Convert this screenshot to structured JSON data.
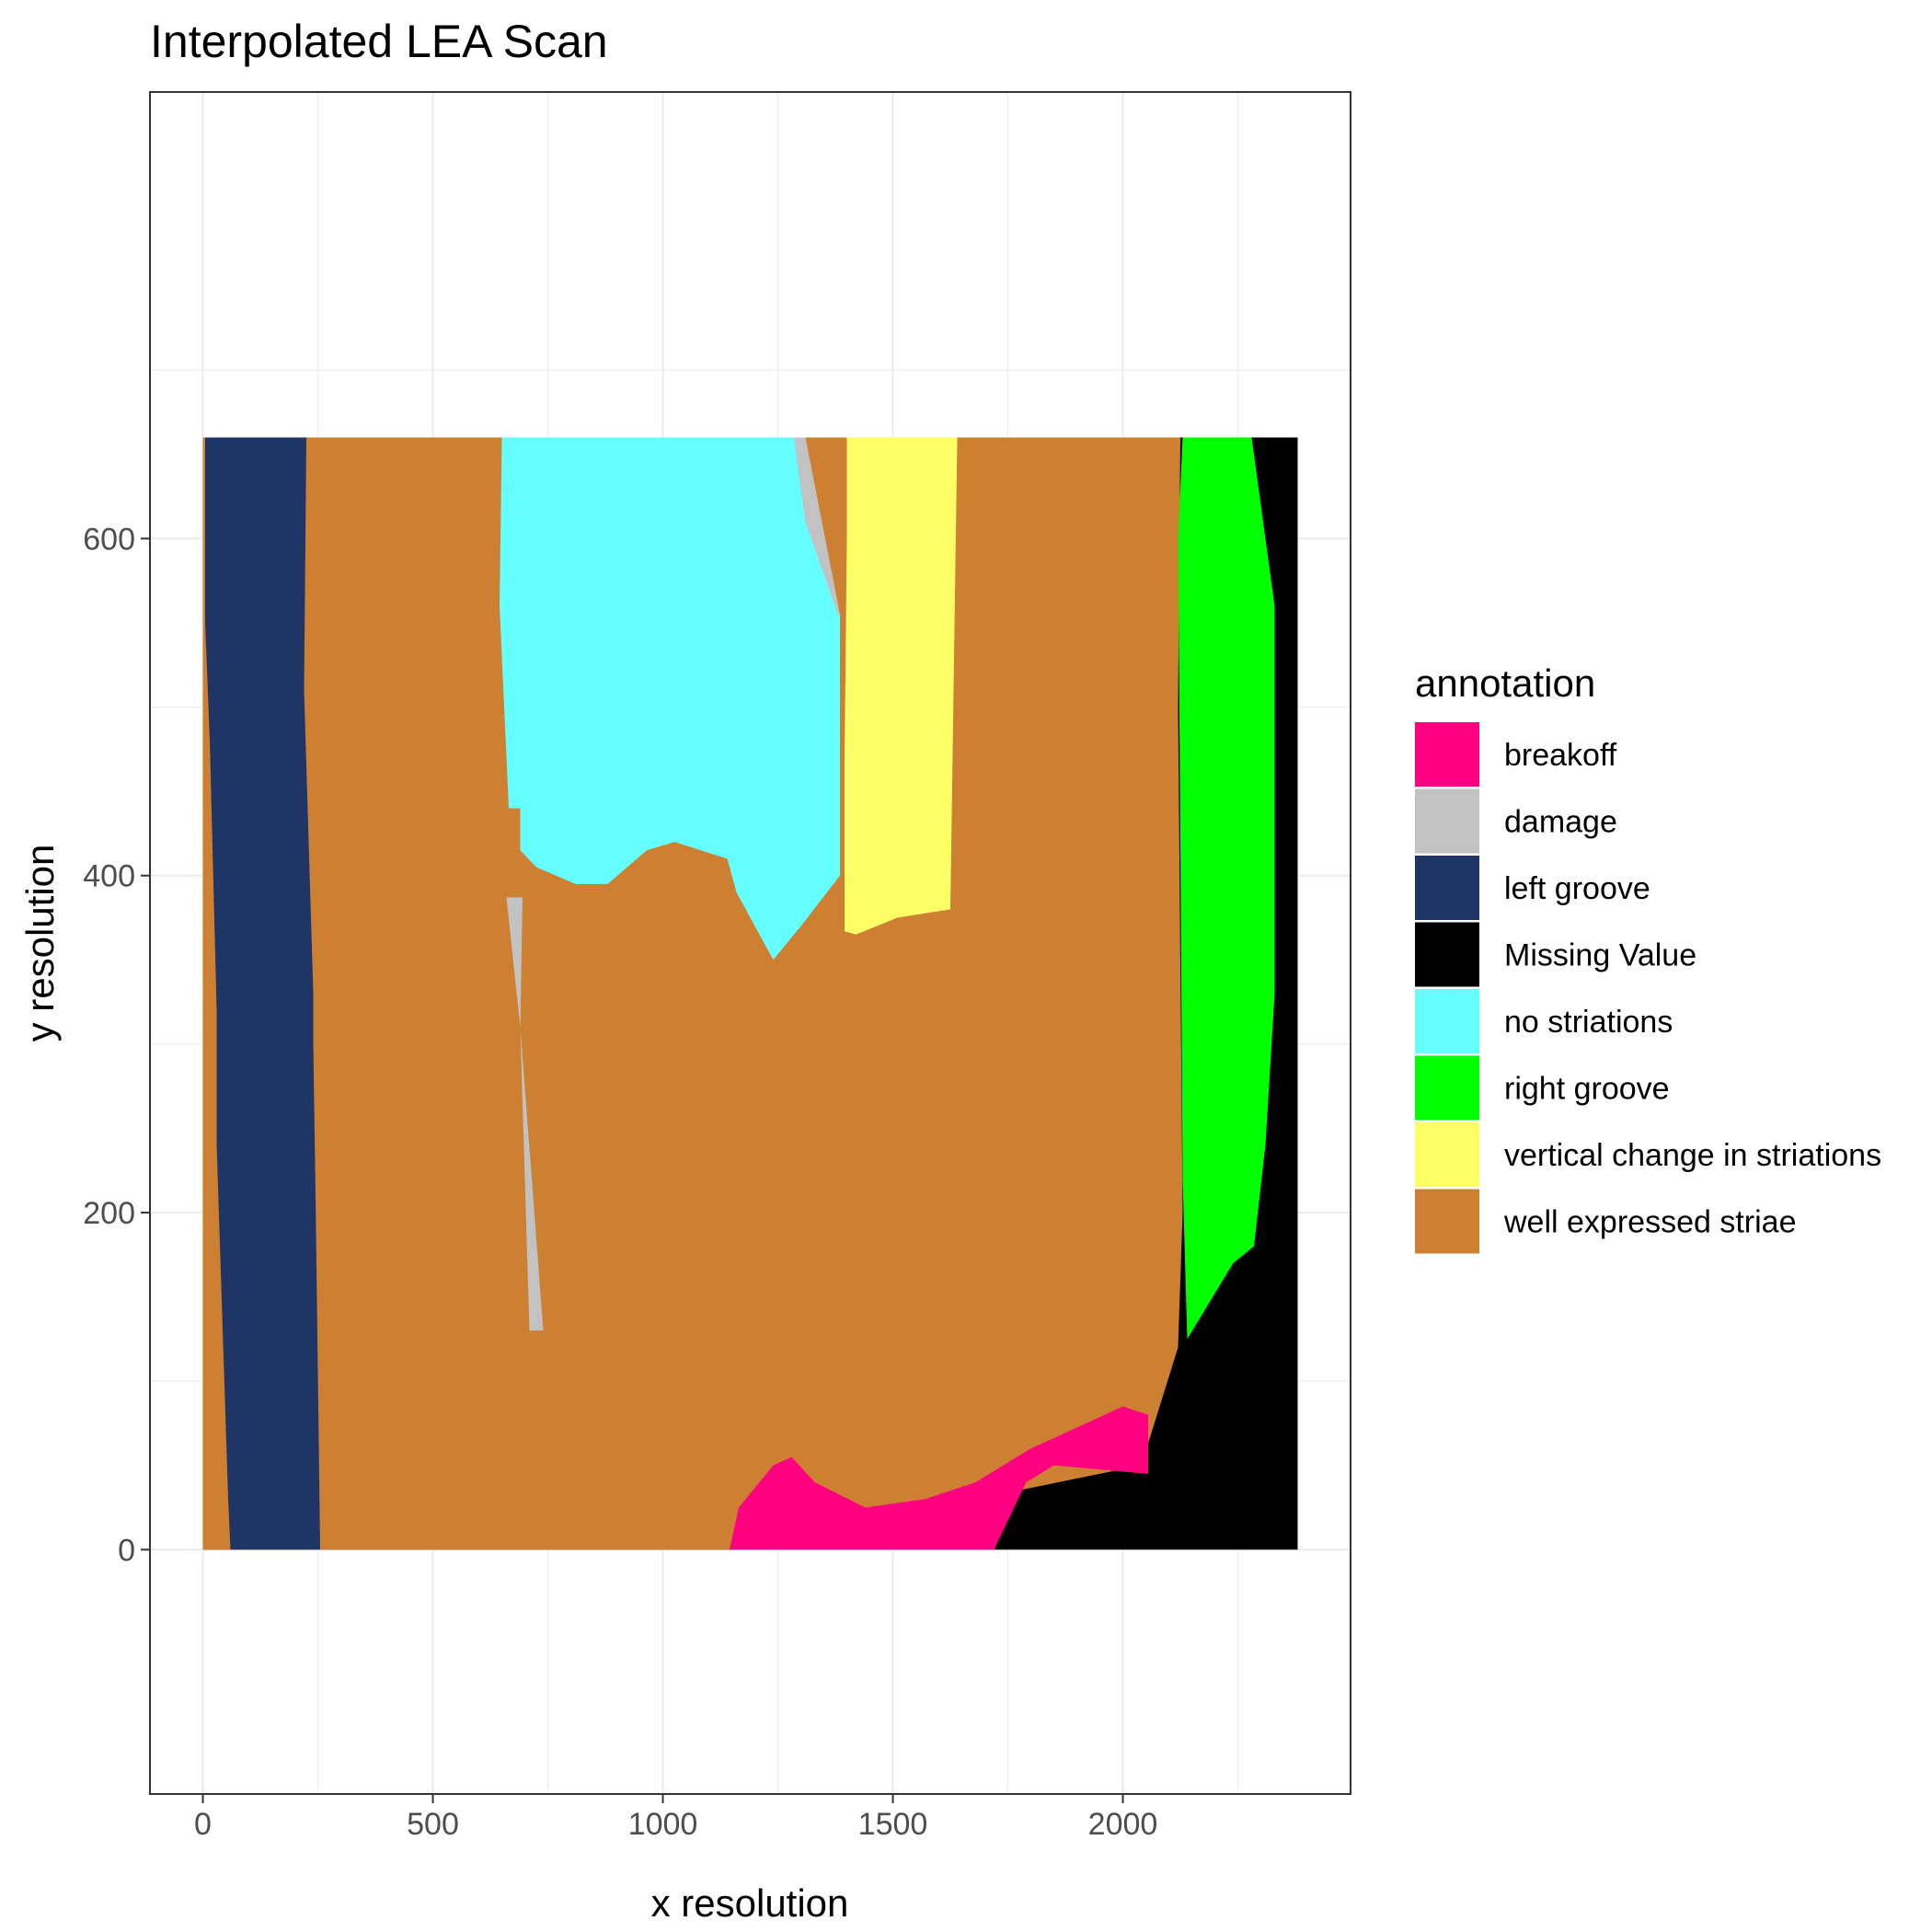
{
  "chart_data": {
    "type": "heatmap",
    "title": "Interpolated LEA Scan",
    "xlabel": "x resolution",
    "ylabel": "y resolution",
    "xlim": [
      -115,
      2495
    ],
    "ylim": [
      -145,
      865
    ],
    "x_ticks": [
      0,
      500,
      1000,
      1500,
      2000
    ],
    "y_ticks": [
      0,
      200,
      400,
      600
    ],
    "grid": true,
    "legend": {
      "title": "annotation",
      "position": "right",
      "items": [
        {
          "label": "breakoff",
          "color": "#FF0080"
        },
        {
          "label": "damage",
          "color": "#C2C2C2"
        },
        {
          "label": "left groove",
          "color": "#1F3566"
        },
        {
          "label": "Missing Value",
          "color": "#000000"
        },
        {
          "label": "no striations",
          "color": "#66FFFF"
        },
        {
          "label": "right groove",
          "color": "#00FF00"
        },
        {
          "label": "vertical change in striations",
          "color": "#FFFF66"
        },
        {
          "label": "well expressed striae",
          "color": "#CD8032"
        }
      ]
    },
    "regions": [
      {
        "annotation": "Missing Value",
        "polygon": [
          [
            0,
            0
          ],
          [
            2380,
            0
          ],
          [
            2380,
            660
          ],
          [
            0,
            660
          ]
        ]
      },
      {
        "annotation": "well expressed striae",
        "polygon": [
          [
            15,
            660
          ],
          [
            2125,
            660
          ],
          [
            2120,
            500
          ],
          [
            2130,
            200
          ],
          [
            2120,
            120
          ],
          [
            2040,
            50
          ],
          [
            1140,
            0
          ],
          [
            0,
            0
          ],
          [
            0,
            660
          ]
        ]
      },
      {
        "annotation": "left groove",
        "polygon": [
          [
            5,
            660
          ],
          [
            225,
            660
          ],
          [
            220,
            510
          ],
          [
            240,
            330
          ],
          [
            240,
            300
          ],
          [
            245,
            210
          ],
          [
            255,
            0
          ],
          [
            60,
            0
          ],
          [
            55,
            30
          ],
          [
            30,
            240
          ],
          [
            30,
            320
          ],
          [
            15,
            480
          ],
          [
            5,
            550
          ]
        ]
      },
      {
        "annotation": "no striations",
        "polygon": [
          [
            650,
            660
          ],
          [
            1285,
            660
          ],
          [
            1310,
            610
          ],
          [
            1385,
            555
          ],
          [
            1385,
            400
          ],
          [
            1300,
            370
          ],
          [
            1240,
            350
          ],
          [
            1160,
            390
          ],
          [
            1140,
            410
          ],
          [
            1025,
            420
          ],
          [
            965,
            415
          ],
          [
            880,
            395
          ],
          [
            810,
            395
          ],
          [
            725,
            405
          ],
          [
            690,
            415
          ],
          [
            690,
            440
          ],
          [
            665,
            440
          ],
          [
            645,
            560
          ]
        ]
      },
      {
        "annotation": "damage",
        "polygon": [
          [
            1285,
            660
          ],
          [
            1310,
            660
          ],
          [
            1385,
            555
          ],
          [
            1380,
            555
          ],
          [
            1310,
            610
          ]
        ]
      },
      {
        "annotation": "damage",
        "polygon": [
          [
            660,
            387
          ],
          [
            695,
            387
          ],
          [
            690,
            310
          ],
          [
            740,
            130
          ],
          [
            710,
            130
          ],
          [
            690,
            310
          ]
        ]
      },
      {
        "annotation": "vertical change in striations",
        "polygon": [
          [
            1400,
            660
          ],
          [
            1640,
            660
          ],
          [
            1625,
            380
          ],
          [
            1510,
            375
          ],
          [
            1420,
            365
          ],
          [
            1395,
            367
          ],
          [
            1395,
            470
          ],
          [
            1400,
            600
          ]
        ]
      },
      {
        "annotation": "right groove",
        "polygon": [
          [
            2130,
            660
          ],
          [
            2280,
            660
          ],
          [
            2330,
            560
          ],
          [
            2330,
            330
          ],
          [
            2310,
            240
          ],
          [
            2285,
            180
          ],
          [
            2240,
            170
          ],
          [
            2140,
            125
          ],
          [
            2130,
            220
          ],
          [
            2125,
            420
          ],
          [
            2120,
            600
          ]
        ]
      },
      {
        "annotation": "breakoff",
        "polygon": [
          [
            1145,
            0
          ],
          [
            1720,
            0
          ],
          [
            1790,
            40
          ],
          [
            1850,
            50
          ],
          [
            2055,
            45
          ],
          [
            2055,
            80
          ],
          [
            2000,
            85
          ],
          [
            1800,
            60
          ],
          [
            1680,
            40
          ],
          [
            1570,
            30
          ],
          [
            1440,
            25
          ],
          [
            1330,
            40
          ],
          [
            1280,
            55
          ],
          [
            1240,
            50
          ],
          [
            1165,
            25
          ]
        ]
      }
    ]
  }
}
